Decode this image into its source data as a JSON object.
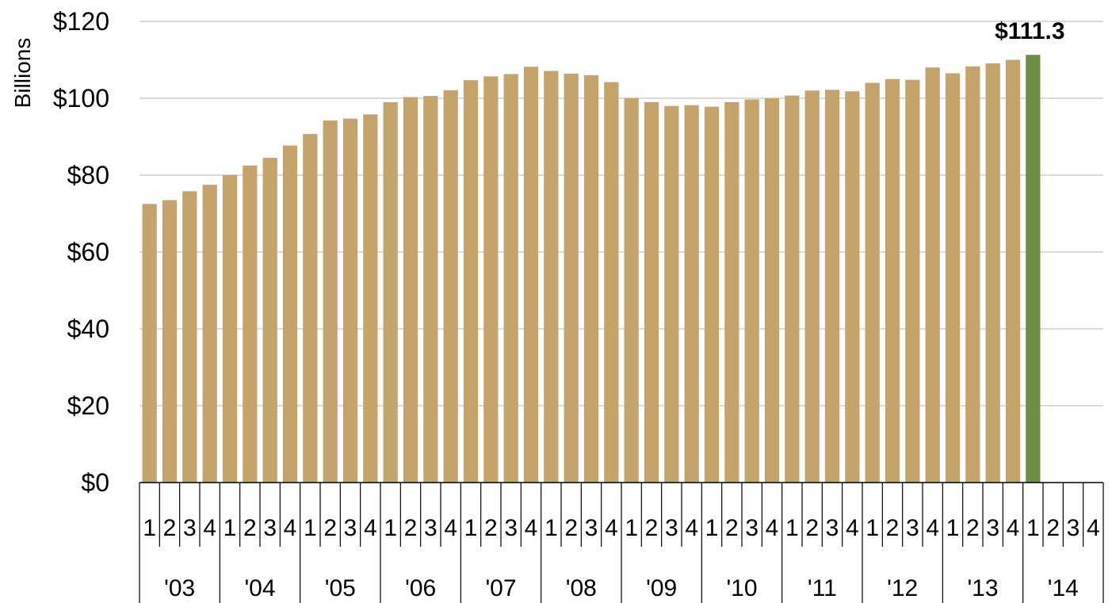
{
  "chart_data": {
    "type": "bar",
    "ylabel": "Billions",
    "ylim": [
      0,
      120
    ],
    "yticks": [
      "$0",
      "$20",
      "$40",
      "$60",
      "$80",
      "$100",
      "$120"
    ],
    "ytick_values": [
      0,
      20,
      40,
      60,
      80,
      100,
      120
    ],
    "grid": true,
    "quarter_labels": [
      "1",
      "2",
      "3",
      "4"
    ],
    "years": [
      "'03",
      "'04",
      "'05",
      "'06",
      "'07",
      "'08",
      "'09",
      "'10",
      "'11",
      "'12",
      "'13",
      "'14"
    ],
    "values": [
      72.5,
      73.5,
      75.8,
      77.5,
      80.0,
      82.5,
      84.5,
      87.7,
      90.7,
      94.2,
      94.7,
      95.8,
      99.0,
      100.3,
      100.6,
      102.1,
      104.7,
      105.7,
      106.3,
      108.2,
      107.1,
      106.4,
      106.0,
      104.2,
      100.0,
      99.0,
      98.0,
      98.2,
      97.8,
      99.0,
      99.7,
      100.0,
      100.7,
      102.0,
      102.2,
      101.8,
      104.0,
      105.0,
      104.8,
      108.0,
      106.5,
      108.3,
      109.1,
      110.0,
      111.3
    ],
    "bar_color": "#c4a46a",
    "highlight_color": "#6b8e45",
    "highlight_index": 44,
    "annotation": "$111.3"
  }
}
